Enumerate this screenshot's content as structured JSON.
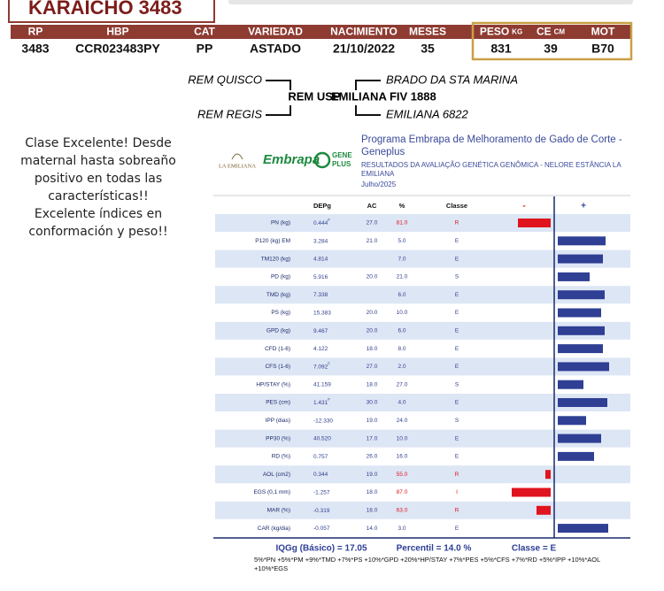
{
  "header": {
    "title": "KARAICHO 3483",
    "columns": [
      "RP",
      "HBP",
      "CAT",
      "VARIEDAD",
      "NACIMIENTO",
      "MESES",
      "PESO",
      "CE",
      "MOT"
    ],
    "column_units": {
      "6": "KG",
      "7": "CM"
    },
    "values": [
      "3483",
      "CCR023483PY",
      "PP",
      "ASTADO",
      "21/10/2022",
      "35",
      "831",
      "39",
      "B70"
    ]
  },
  "pedigree": {
    "animal_sire": "REM USP",
    "sire_sire": "REM QUISCO",
    "sire_dam": "REM REGIS",
    "animal_dam": "EMILIANA FIV 1888",
    "dam_sire": "BRADO DA STA MARINA",
    "dam_dam": "EMILIANA 6822"
  },
  "comment": "Clase Excelente! Desde maternal hasta sobreaño positivo en todas las características!! Excelente índices en conformación y peso!!",
  "panel": {
    "logo_left": "LA EMILIANA",
    "logo_embrapa": "Embrapa",
    "logo_gene": "GENE",
    "logo_plus": "PLUS",
    "title": "Programa Embrapa de Melhoramento de Gado de Corte - Geneplus",
    "subtitle": "RESULTADOS DA AVALIAÇÃO GENÉTICA GENÔMICA - NELORE ESTÂNCIA LA EMILIANA",
    "date": "Julho/2025",
    "table": {
      "columns": [
        "DEPg",
        "AC",
        "%",
        "Classe",
        "-",
        "+"
      ],
      "rows": [
        {
          "trait": "PN (kg)",
          "dep": "0.444",
          "sup": "F",
          "ac": "27.0",
          "pct": "81.0",
          "classe": "R",
          "bar": -37
        },
        {
          "trait": "P120 (kg) EM",
          "dep": "3.284",
          "ac": "21.0",
          "pct": "5.0",
          "classe": "E",
          "bar": 54
        },
        {
          "trait": "TM120 (kg)",
          "dep": "4.814",
          "pct": "7.0",
          "classe": "E",
          "bar": 51
        },
        {
          "trait": "PD (kg)",
          "dep": "5.916",
          "ac": "20.0",
          "pct": "21.0",
          "classe": "S",
          "bar": 36
        },
        {
          "trait": "TMD (kg)",
          "dep": "7.338",
          "pct": "6.0",
          "classe": "E",
          "bar": 53
        },
        {
          "trait": "PS (kg)",
          "dep": "15.383",
          "ac": "20.0",
          "pct": "10.0",
          "classe": "E",
          "bar": 49
        },
        {
          "trait": "GPD (kg)",
          "dep": "9.467",
          "ac": "20.0",
          "pct": "6.0",
          "classe": "E",
          "bar": 53
        },
        {
          "trait": "CFD (1-6)",
          "dep": "4.122",
          "ac": "18.0",
          "pct": "8.0",
          "classe": "E",
          "bar": 51
        },
        {
          "trait": "CFS (1-6)",
          "dep": "7.092",
          "sup": "F",
          "ac": "27.0",
          "pct": "2.0",
          "classe": "E",
          "bar": 58
        },
        {
          "trait": "HP/STAY (%)",
          "dep": "41.159",
          "ac": "18.0",
          "pct": "27.0",
          "classe": "S",
          "bar": 29
        },
        {
          "trait": "PES (cm)",
          "dep": "1.431",
          "sup": "F",
          "ac": "30.0",
          "pct": "4.0",
          "classe": "E",
          "bar": 56
        },
        {
          "trait": "IPP (dias)",
          "dep": "-12.330",
          "ac": "19.0",
          "pct": "24.0",
          "classe": "S",
          "bar": 32
        },
        {
          "trait": "PP30 (%)",
          "dep": "40.520",
          "ac": "17.0",
          "pct": "10.0",
          "classe": "E",
          "bar": 49
        },
        {
          "trait": "RD (%)",
          "dep": "0.757",
          "ac": "26.0",
          "pct": "16.0",
          "classe": "E",
          "bar": 41
        },
        {
          "trait": "AOL (cm2)",
          "dep": "0.344",
          "ac": "19.0",
          "pct": "55.0",
          "classe": "R",
          "bar": -6
        },
        {
          "trait": "EGS (0,1 mm)",
          "dep": "-1.257",
          "ac": "18.0",
          "pct": "87.0",
          "classe": "I",
          "bar": -44
        },
        {
          "trait": "MAR (%)",
          "dep": "-0.319",
          "ac": "18.0",
          "pct": "63.0",
          "classe": "R",
          "bar": -16
        },
        {
          "trait": "CAR (kg/dia)",
          "dep": "-0.057",
          "ac": "14.0",
          "pct": "3.0",
          "classe": "E",
          "bar": 57
        }
      ],
      "colors": {
        "negative": "#e0141e",
        "positive": "#2e3f94"
      }
    },
    "summary": [
      "IQGg (Básico) = 17.05",
      "Percentil = 14.0 %",
      "Classe = E"
    ],
    "formula": "5%*PN +5%*PM +9%*TMD +7%*PS +10%*GPD +20%*HP/STAY +7%*PES +5%*CFS +7%*RD +5%*IPP +10%*AOL +10%*EGS"
  }
}
